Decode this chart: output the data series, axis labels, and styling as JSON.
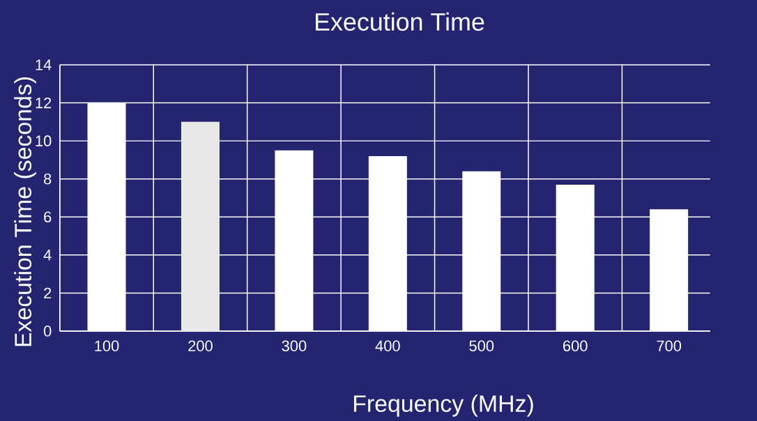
{
  "chart_data": {
    "type": "bar",
    "title": "Execution Time",
    "xlabel": "Frequency (MHz)",
    "ylabel": "Execution Time (seconds)",
    "categories": [
      "100",
      "200",
      "300",
      "400",
      "500",
      "600",
      "700"
    ],
    "values": [
      12,
      11,
      9.5,
      9.2,
      8.4,
      7.7,
      6.4
    ],
    "colors": [
      "#ffffff",
      "#e8e8e8",
      "#ffffff",
      "#ffffff",
      "#ffffff",
      "#ffffff",
      "#ffffff"
    ],
    "ylim": [
      0,
      14
    ],
    "yticks": [
      0,
      2,
      4,
      6,
      8,
      10,
      12,
      14
    ],
    "grid": true
  }
}
